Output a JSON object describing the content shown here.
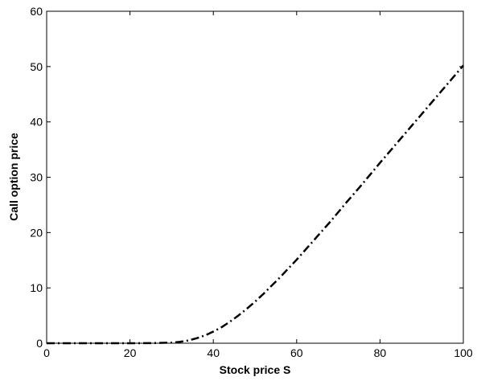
{
  "chart_data": {
    "type": "line",
    "title": "",
    "xlabel": "Stock price S",
    "ylabel": "Call option price",
    "xlim": [
      0,
      100
    ],
    "ylim": [
      0,
      60
    ],
    "xticks": [
      0,
      20,
      40,
      60,
      80,
      100
    ],
    "yticks": [
      0,
      10,
      20,
      30,
      40,
      50,
      60
    ],
    "grid": false,
    "line_style": "dash-dot",
    "line_color": "#000000",
    "series": [
      {
        "x": [
          0,
          10,
          20,
          25,
          30,
          32,
          34,
          36,
          38,
          40,
          42,
          44,
          46,
          48,
          50,
          52,
          54,
          56,
          58,
          60,
          62,
          64,
          66,
          68,
          70,
          72,
          75,
          80,
          85,
          90,
          95,
          100
        ],
        "values": [
          0,
          0,
          0,
          0.02,
          0.1,
          0.25,
          0.5,
          0.9,
          1.4,
          2.1,
          2.9,
          3.9,
          5.0,
          6.2,
          7.5,
          8.9,
          10.4,
          11.9,
          13.5,
          15.1,
          16.8,
          18.5,
          20.2,
          21.9,
          23.7,
          25.5,
          28.1,
          32.6,
          37.0,
          41.4,
          45.8,
          50.2
        ]
      }
    ]
  }
}
